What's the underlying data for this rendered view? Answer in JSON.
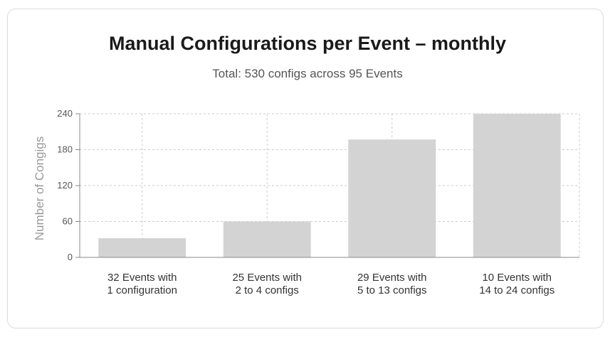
{
  "chart_data": {
    "type": "bar",
    "title": "Manual Configurations per Event – monthly",
    "subtitle": "Total: 530 configs across 95 Events",
    "ylabel": "Number of Congigs",
    "xlabel": "",
    "ylim": [
      0,
      240
    ],
    "yticks": [
      0,
      60,
      120,
      180,
      240
    ],
    "grid": true,
    "categories": [
      [
        "32 Events with",
        "1 configuration"
      ],
      [
        "25 Events with",
        "2 to 4 configs"
      ],
      [
        "29 Events with",
        "5 to 13 configs"
      ],
      [
        "10 Events with",
        "14 to 24 configs"
      ]
    ],
    "values": [
      32,
      60,
      197,
      240
    ],
    "bar_color": "#d3d3d3"
  }
}
